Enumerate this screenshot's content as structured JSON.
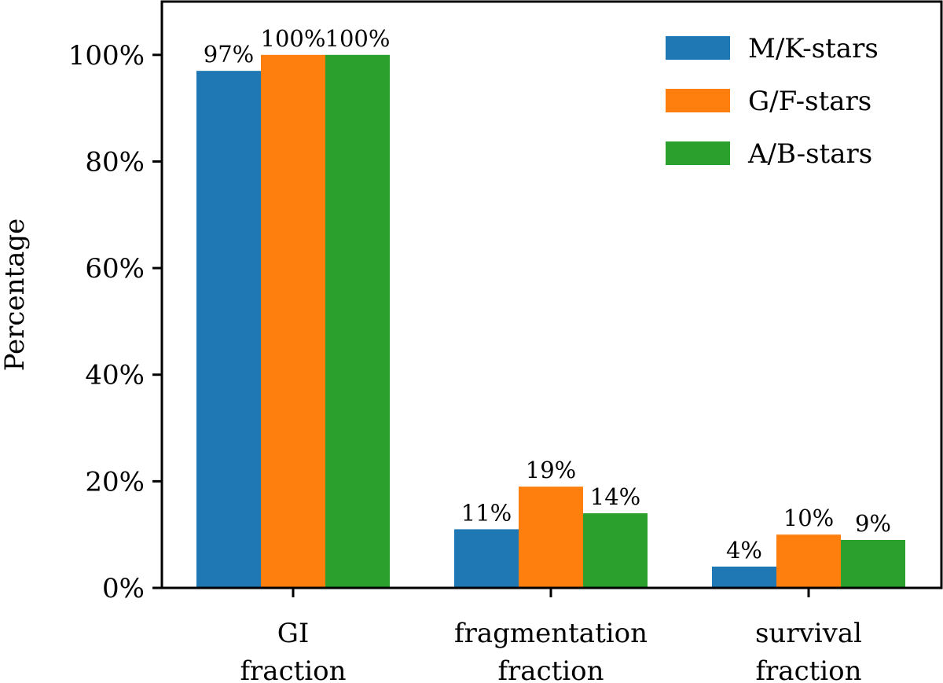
{
  "chart_data": {
    "type": "bar",
    "title": "",
    "xlabel": "",
    "ylabel": "Percentage",
    "ylim": [
      0,
      110
    ],
    "yticks": [
      0,
      20,
      40,
      60,
      80,
      100
    ],
    "ytick_labels": [
      "0%",
      "20%",
      "40%",
      "60%",
      "80%",
      "100%"
    ],
    "categories": [
      {
        "line1": "GI",
        "line2": "fraction"
      },
      {
        "line1": "fragmentation",
        "line2": "fraction"
      },
      {
        "line1": "survival",
        "line2": "fraction"
      }
    ],
    "series": [
      {
        "name": "M/K-stars",
        "color": "#1f77b4",
        "values": [
          97,
          11,
          4
        ],
        "labels": [
          "97%",
          "11%",
          "4%"
        ]
      },
      {
        "name": "G/F-stars",
        "color": "#ff7f0e",
        "values": [
          100,
          19,
          10
        ],
        "labels": [
          "100%",
          "19%",
          "10%"
        ]
      },
      {
        "name": "A/B-stars",
        "color": "#2ca02c",
        "values": [
          100,
          14,
          9
        ],
        "labels": [
          "100%",
          "14%",
          "9%"
        ]
      }
    ],
    "legend_position": "top-right",
    "grid": false
  }
}
